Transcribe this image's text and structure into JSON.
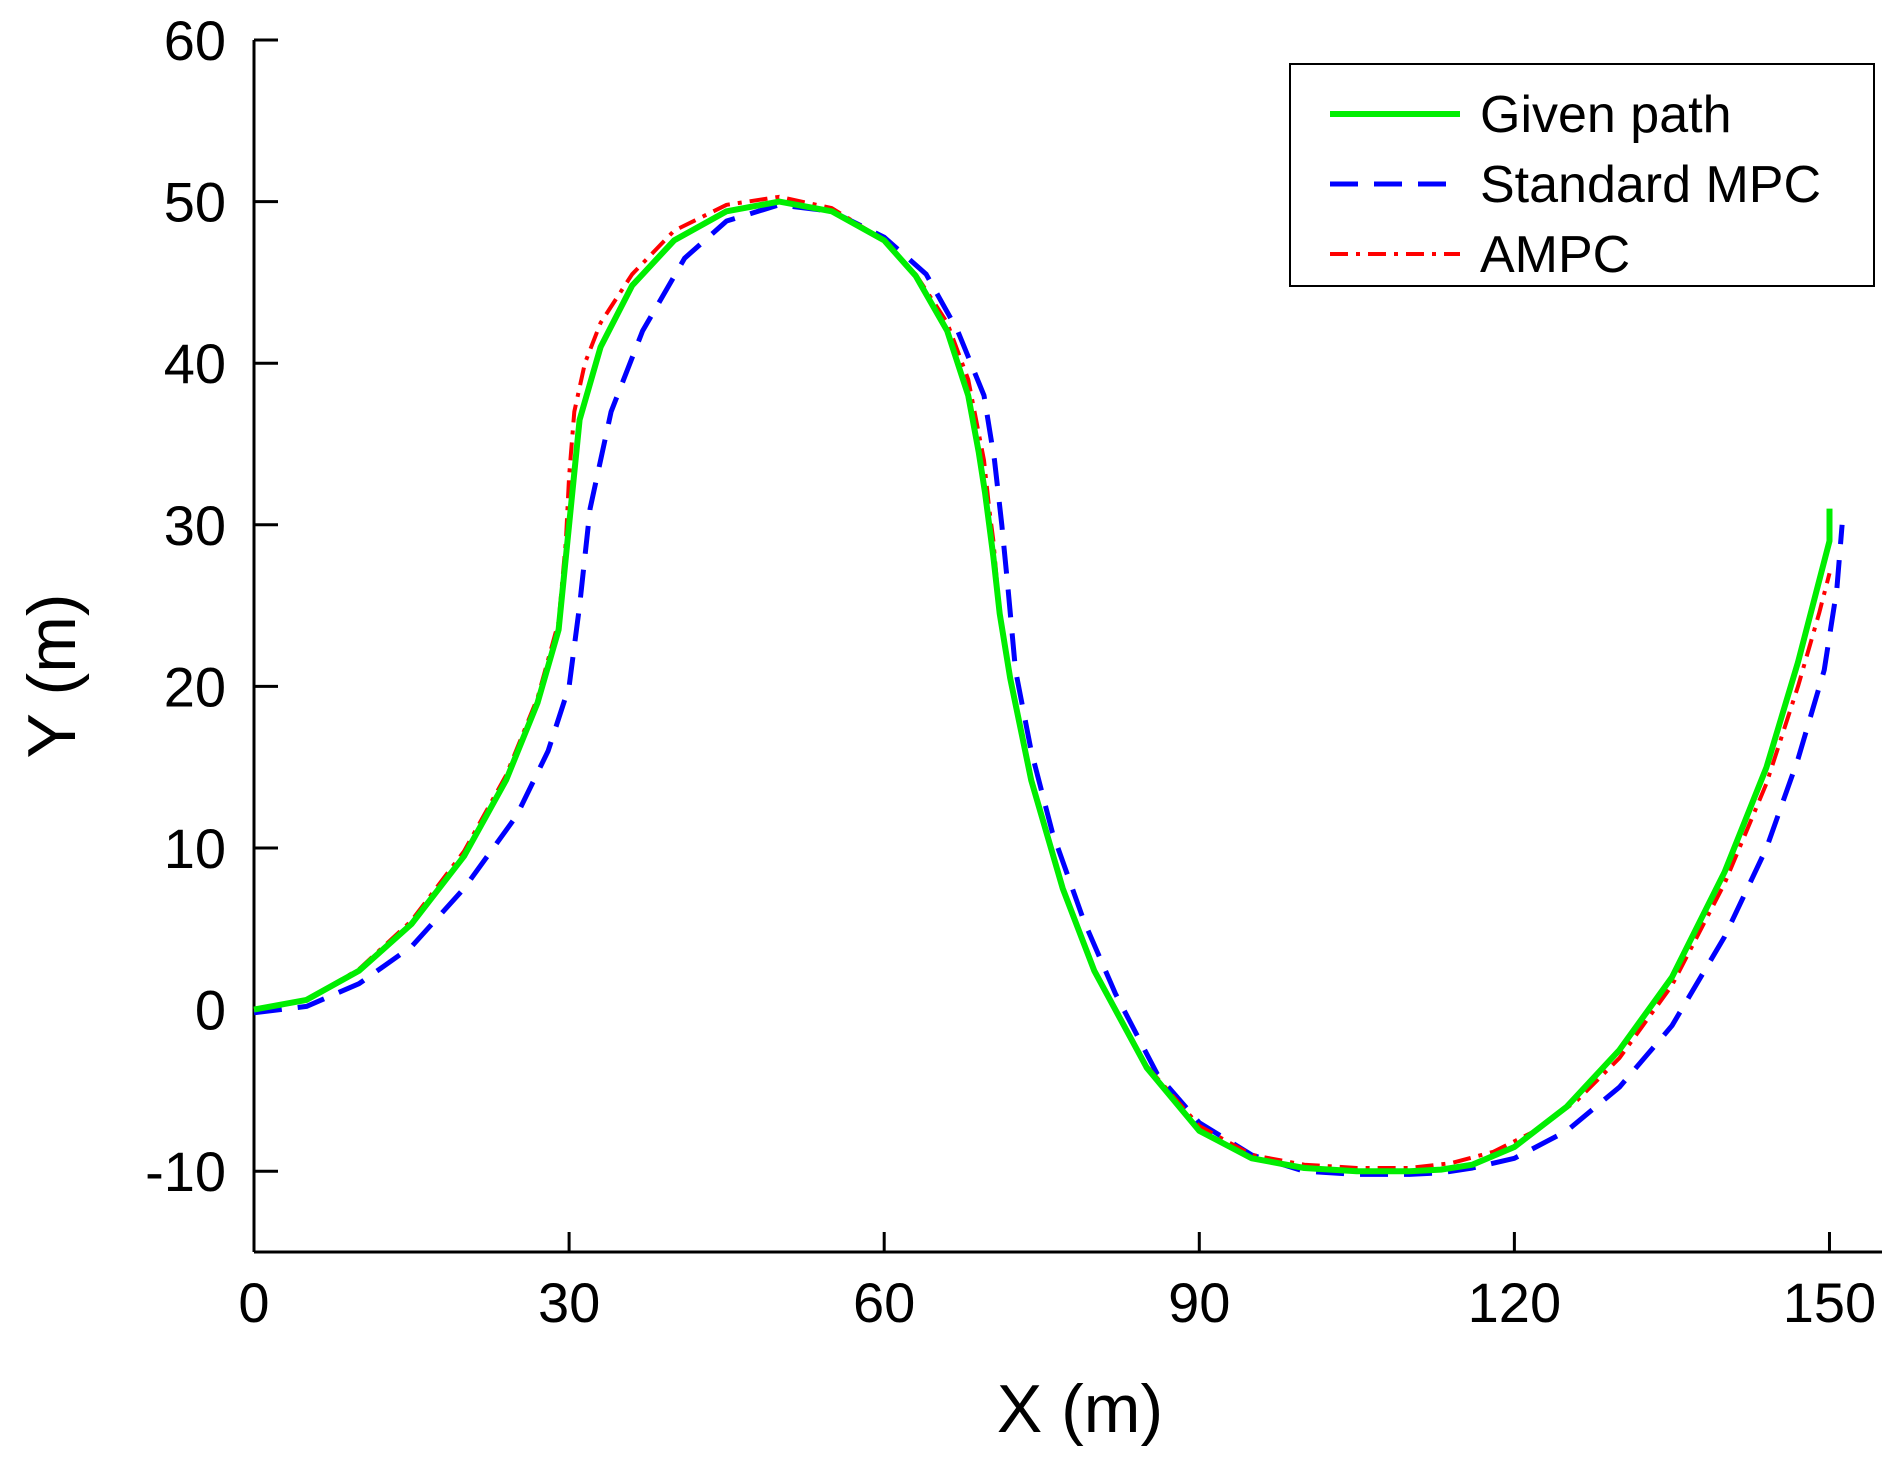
{
  "chart_data": {
    "type": "line",
    "title": "",
    "xlabel": "X (m)",
    "ylabel": "Y (m)",
    "xlim": [
      0,
      155
    ],
    "ylim": [
      -15,
      60
    ],
    "xticks": [
      0,
      30,
      60,
      90,
      120,
      150
    ],
    "yticks": [
      -10,
      0,
      10,
      20,
      30,
      40,
      50,
      60
    ],
    "xtick_labels": [
      "0",
      "30",
      "60",
      "90",
      "120",
      "150"
    ],
    "ytick_labels": [
      "-10",
      "0",
      "10",
      "20",
      "30",
      "40",
      "50",
      "60"
    ],
    "grid": false,
    "legend_position": "top-right",
    "series": [
      {
        "name": "Given path",
        "color": "#00ee00",
        "style": "solid",
        "x": [
          0,
          5,
          10,
          15,
          20,
          24,
          27,
          29,
          30,
          31,
          33,
          36,
          40,
          45,
          50,
          55,
          60,
          63,
          66,
          68,
          69,
          69.6,
          70,
          70.4,
          71,
          72,
          74,
          77,
          80,
          85,
          90,
          95,
          100,
          105,
          110,
          113,
          116,
          120,
          125,
          130,
          135,
          140,
          144,
          147,
          149,
          150,
          150,
          150
        ],
        "y": [
          0,
          0.6,
          2.4,
          5.3,
          9.5,
          14.2,
          19.0,
          23.5,
          30.0,
          36.5,
          41.0,
          44.8,
          47.6,
          49.4,
          50.0,
          49.4,
          47.6,
          45.4,
          42.0,
          38.0,
          34.5,
          32.0,
          30.0,
          28.0,
          24.5,
          20.5,
          14.2,
          7.5,
          2.4,
          -3.6,
          -7.5,
          -9.2,
          -9.8,
          -10.0,
          -10.0,
          -9.9,
          -9.6,
          -8.5,
          -6.0,
          -2.5,
          2.0,
          8.5,
          15.0,
          21.5,
          26.5,
          29.0,
          30.0,
          31.0
        ]
      },
      {
        "name": "Standard MPC",
        "color": "#0000ff",
        "style": "dashed",
        "x": [
          0,
          5,
          10,
          15,
          20,
          25,
          28,
          30,
          31,
          32,
          34,
          37,
          41,
          45,
          50,
          55,
          60,
          64,
          67,
          69.5,
          70.5,
          71.2,
          71.8,
          72.5,
          74,
          76,
          79,
          82,
          86,
          90,
          95,
          100,
          105,
          110,
          113,
          116,
          120,
          125,
          130,
          135,
          140,
          144,
          147,
          149.5,
          150.7,
          151.2
        ],
        "y": [
          -0.2,
          0.2,
          1.6,
          3.9,
          7.5,
          12.0,
          16.0,
          20.0,
          25.0,
          31.0,
          37.0,
          42.0,
          46.5,
          48.8,
          49.8,
          49.4,
          47.8,
          45.5,
          42.0,
          38.0,
          34.0,
          30.0,
          26.0,
          21.0,
          16.0,
          11.0,
          5.5,
          1.0,
          -4.0,
          -7.0,
          -9.0,
          -10.0,
          -10.2,
          -10.2,
          -10.1,
          -9.8,
          -9.2,
          -7.5,
          -4.8,
          -1.0,
          4.5,
          10.0,
          15.5,
          21.0,
          26.0,
          30.0
        ]
      },
      {
        "name": "AMPC",
        "color": "#ff0000",
        "style": "dashdot",
        "x": [
          0,
          5,
          10,
          15,
          20,
          24,
          27,
          29,
          29.7,
          30,
          30.5,
          31.5,
          33,
          36,
          40,
          45,
          50,
          55,
          60,
          63,
          66,
          68,
          69.5,
          70,
          70.4,
          71,
          72,
          74,
          77,
          80,
          85,
          90,
          95,
          100,
          105,
          110,
          114,
          118,
          122,
          126,
          130,
          135,
          140,
          144,
          147,
          149,
          150
        ],
        "y": [
          0,
          0.6,
          2.5,
          5.5,
          9.8,
          14.5,
          19.3,
          24.0,
          29.0,
          33.0,
          37.0,
          40.0,
          42.5,
          45.5,
          48.2,
          49.8,
          50.3,
          49.6,
          47.6,
          45.5,
          42.5,
          39.0,
          34.0,
          31.0,
          29.0,
          24.5,
          20.5,
          14.2,
          7.5,
          2.5,
          -3.5,
          -7.2,
          -9.0,
          -9.6,
          -9.8,
          -9.8,
          -9.5,
          -8.8,
          -7.5,
          -5.6,
          -3.0,
          1.5,
          7.8,
          14.0,
          20.0,
          24.5,
          27.0
        ]
      }
    ]
  }
}
